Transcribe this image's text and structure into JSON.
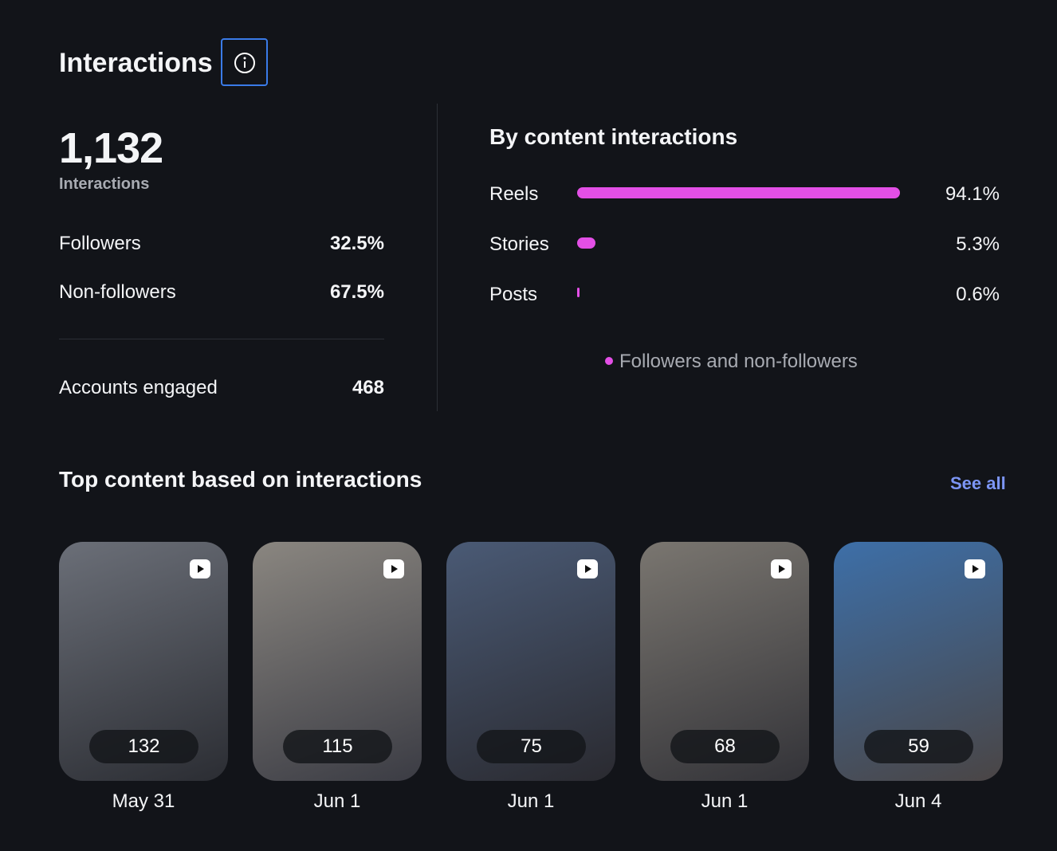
{
  "header": {
    "title": "Interactions"
  },
  "summary": {
    "total": "1,132",
    "total_label": "Interactions",
    "rows": [
      {
        "label": "Followers",
        "value": "32.5%"
      },
      {
        "label": "Non-followers",
        "value": "67.5%"
      }
    ],
    "accounts_engaged": {
      "label": "Accounts engaged",
      "value": 468
    }
  },
  "by_content": {
    "title": "By content interactions",
    "color": "#e34fe6",
    "bars": [
      {
        "label": "Reels",
        "value": 94.1,
        "value_label": "94.1%"
      },
      {
        "label": "Stories",
        "value": 5.3,
        "value_label": "5.3%"
      },
      {
        "label": "Posts",
        "value": 0.6,
        "value_label": "0.6%"
      }
    ],
    "legend": "Followers and non-followers"
  },
  "top_content": {
    "title": "Top content based on interactions",
    "see_all": "See all",
    "items": [
      {
        "count": 132,
        "date": "May 31"
      },
      {
        "count": 115,
        "date": "Jun 1"
      },
      {
        "count": 75,
        "date": "Jun 1"
      },
      {
        "count": 68,
        "date": "Jun 1"
      },
      {
        "count": 59,
        "date": "Jun 4"
      }
    ]
  }
}
